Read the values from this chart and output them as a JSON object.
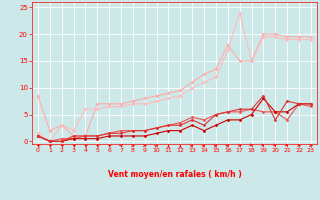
{
  "xlabel": "Vent moyen/en rafales ( km/h )",
  "bg_color": "#cde8e8",
  "grid_color": "#ffffff",
  "text_color": "#ff0000",
  "xlim": [
    -0.5,
    23.5
  ],
  "ylim": [
    -0.5,
    26
  ],
  "yticks": [
    0,
    5,
    10,
    15,
    20,
    25
  ],
  "xticks": [
    0,
    1,
    2,
    3,
    4,
    5,
    6,
    7,
    8,
    9,
    10,
    11,
    12,
    13,
    14,
    15,
    16,
    17,
    18,
    19,
    20,
    21,
    22,
    23
  ],
  "series": [
    {
      "x": [
        0,
        1,
        2,
        3,
        4,
        5,
        6,
        7,
        8,
        9,
        10,
        11,
        12,
        13,
        14,
        15,
        16,
        17,
        18,
        19,
        20,
        21,
        22,
        23
      ],
      "y": [
        8.5,
        2.0,
        3.0,
        1.0,
        1.0,
        7.0,
        7.0,
        7.0,
        7.5,
        8.0,
        8.5,
        9.0,
        9.5,
        11.0,
        12.5,
        13.5,
        18.0,
        15.0,
        15.0,
        20.0,
        20.0,
        19.5,
        19.5,
        19.5
      ],
      "color": "#ffaaaa",
      "lw": 0.8,
      "marker": "D",
      "ms": 1.5
    },
    {
      "x": [
        0,
        1,
        2,
        3,
        4,
        5,
        6,
        7,
        8,
        9,
        10,
        11,
        12,
        13,
        14,
        15,
        16,
        17,
        18,
        19,
        20,
        21,
        22,
        23
      ],
      "y": [
        1.5,
        0.0,
        3.0,
        2.0,
        6.0,
        6.0,
        6.5,
        6.5,
        7.0,
        7.0,
        7.5,
        8.0,
        8.5,
        10.0,
        11.0,
        12.0,
        17.0,
        24.0,
        15.0,
        19.5,
        19.5,
        19.0,
        19.0,
        19.0
      ],
      "color": "#ffbbbb",
      "lw": 0.8,
      "marker": "D",
      "ms": 1.5
    },
    {
      "x": [
        0,
        1,
        2,
        3,
        4,
        5,
        6,
        7,
        8,
        9,
        10,
        11,
        12,
        13,
        14,
        15,
        16,
        17,
        18,
        19,
        20,
        21,
        22,
        23
      ],
      "y": [
        1.0,
        0.0,
        0.5,
        0.5,
        1.0,
        1.0,
        1.5,
        2.0,
        2.0,
        2.0,
        2.5,
        3.0,
        3.5,
        4.5,
        4.0,
        5.0,
        5.5,
        5.5,
        6.0,
        5.5,
        5.5,
        4.0,
        7.0,
        6.5
      ],
      "color": "#ee5555",
      "lw": 0.8,
      "marker": "D",
      "ms": 1.5
    },
    {
      "x": [
        0,
        1,
        2,
        3,
        4,
        5,
        6,
        7,
        8,
        9,
        10,
        11,
        12,
        13,
        14,
        15,
        16,
        17,
        18,
        19,
        20,
        21,
        22,
        23
      ],
      "y": [
        1.0,
        0.0,
        0.0,
        0.5,
        0.5,
        0.5,
        1.0,
        1.0,
        1.0,
        1.0,
        1.5,
        2.0,
        2.0,
        3.0,
        2.0,
        3.0,
        4.0,
        4.0,
        5.0,
        8.0,
        5.5,
        5.5,
        7.0,
        7.0
      ],
      "color": "#cc0000",
      "lw": 0.8,
      "marker": "D",
      "ms": 1.5
    },
    {
      "x": [
        0,
        1,
        2,
        3,
        4,
        5,
        6,
        7,
        8,
        9,
        10,
        11,
        12,
        13,
        14,
        15,
        16,
        17,
        18,
        19,
        20,
        21,
        22,
        23
      ],
      "y": [
        1.0,
        0.0,
        0.0,
        1.0,
        1.0,
        1.0,
        1.5,
        1.5,
        2.0,
        2.0,
        2.5,
        3.0,
        3.0,
        4.0,
        3.0,
        5.0,
        5.5,
        6.0,
        6.0,
        8.5,
        4.0,
        7.5,
        7.0,
        7.0
      ],
      "color": "#dd3333",
      "lw": 0.8,
      "marker": "D",
      "ms": 1.5
    }
  ],
  "arrow_angles": [
    225,
    225,
    225,
    225,
    225,
    225,
    225,
    270,
    90,
    90,
    135,
    180,
    180,
    135,
    135,
    135,
    135,
    90,
    45,
    45,
    45,
    45,
    90,
    90
  ]
}
